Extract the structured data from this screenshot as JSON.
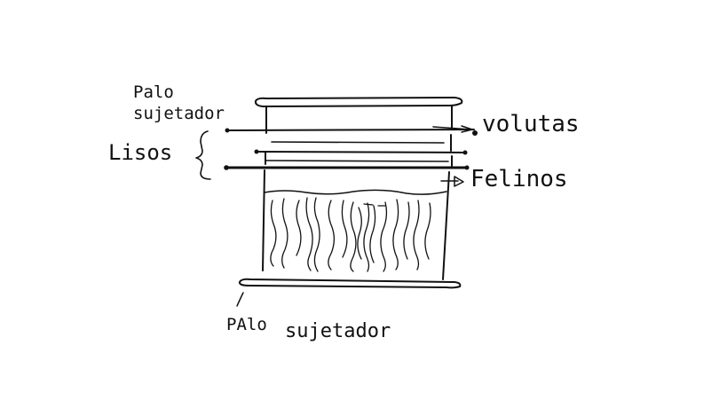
{
  "labels": {
    "top_holder_line1": "Palo",
    "top_holder_line2": "sujetador",
    "lisos": "Lisos",
    "volutas": "volutas",
    "felinos": "Felinos",
    "bottom_holder_line1": "PAlo",
    "bottom_holder_line2": "sujetador"
  },
  "colors": {
    "ink": "#111111",
    "paper": "#ffffff"
  }
}
